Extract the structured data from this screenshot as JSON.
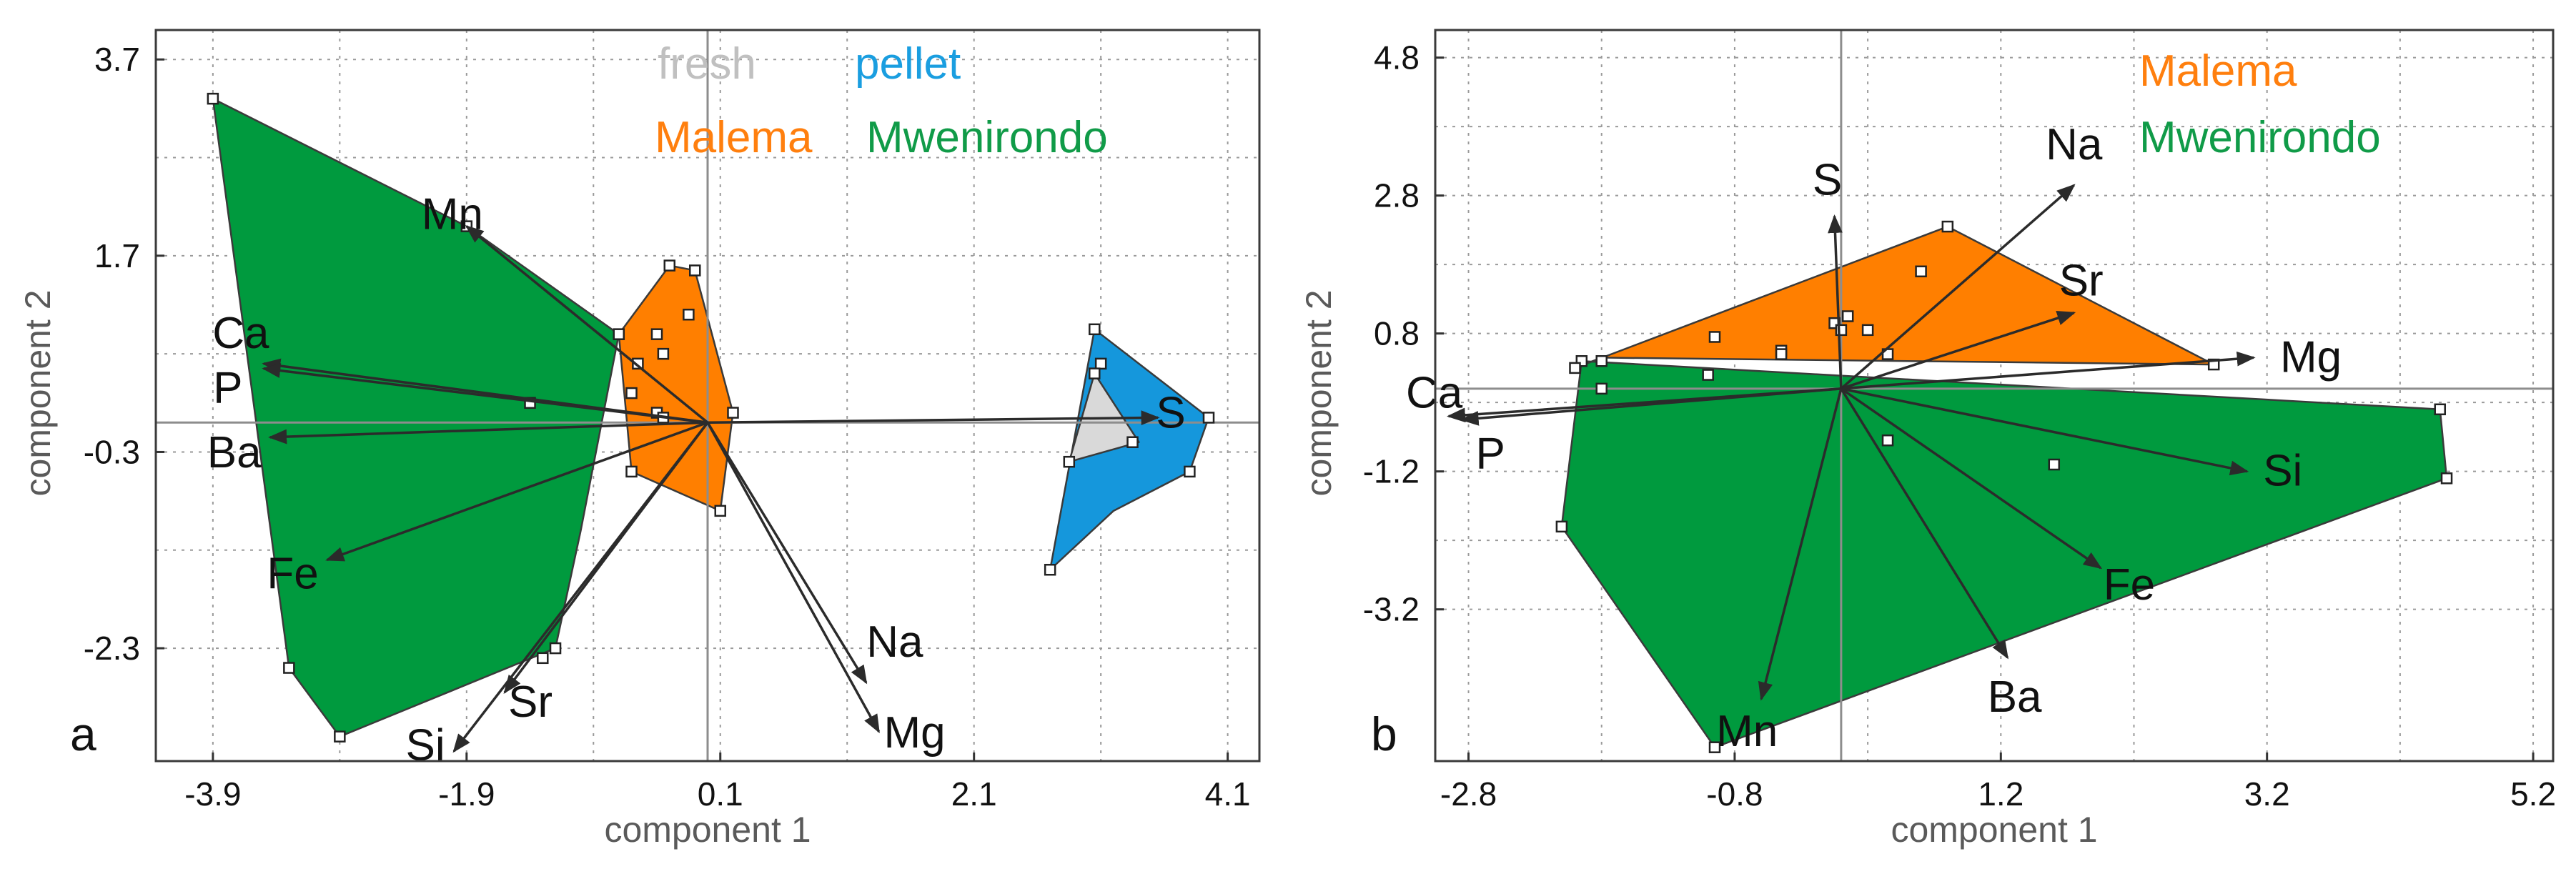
{
  "chart_data": [
    {
      "type": "biplot",
      "panel_label": "a",
      "xlabel": "component 1",
      "ylabel": "component 2",
      "xlim": [
        -4.35,
        4.35
      ],
      "ylim": [
        -3.45,
        4.0
      ],
      "xticks": [
        -3.9,
        -1.9,
        0.1,
        2.1,
        4.1
      ],
      "xtick_labels": [
        "-3.9",
        "-1.9",
        "0.1",
        "2.1",
        "4.1"
      ],
      "yticks": [
        3.7,
        1.7,
        -0.3,
        -2.3
      ],
      "ytick_labels": [
        "3.7",
        "1.7",
        "-0.3",
        "-2.3"
      ],
      "legend": [
        {
          "label": "fresh",
          "color": "#c0c0c0"
        },
        {
          "label": "pellet",
          "color": "#1a9ee0"
        },
        {
          "label": "Malema",
          "color": "#ff7f0e"
        },
        {
          "label": "Mwenirondo",
          "color": "#109b48"
        }
      ],
      "groups": [
        {
          "name": "Mwenirondo",
          "color": "#009a3e",
          "hull": [
            [
              -3.9,
              3.3
            ],
            [
              -1.9,
              2.0
            ],
            [
              -0.7,
              0.9
            ],
            [
              -1.0,
              -1.1
            ],
            [
              -1.2,
              -2.3
            ],
            [
              -2.9,
              -3.2
            ],
            [
              -3.3,
              -2.5
            ]
          ],
          "points": [
            [
              -3.9,
              3.3
            ],
            [
              -1.9,
              2.0
            ],
            [
              -0.7,
              0.9
            ],
            [
              -1.2,
              -2.3
            ],
            [
              -1.3,
              -2.4
            ],
            [
              -2.9,
              -3.2
            ],
            [
              -3.3,
              -2.5
            ],
            [
              -1.4,
              0.2
            ]
          ]
        },
        {
          "name": "Malema",
          "color": "#ff7f00",
          "hull": [
            [
              -0.7,
              0.9
            ],
            [
              -0.3,
              1.6
            ],
            [
              -0.1,
              1.55
            ],
            [
              0.2,
              0.1
            ],
            [
              0.1,
              -0.9
            ],
            [
              -0.6,
              -0.5
            ]
          ],
          "points": [
            [
              -0.7,
              0.9
            ],
            [
              -0.3,
              1.6
            ],
            [
              -0.1,
              1.55
            ],
            [
              -0.15,
              1.1
            ],
            [
              -0.4,
              0.9
            ],
            [
              -0.35,
              0.7
            ],
            [
              -0.55,
              0.6
            ],
            [
              -0.6,
              0.3
            ],
            [
              -0.4,
              0.1
            ],
            [
              -0.35,
              0.05
            ],
            [
              0.2,
              0.1
            ],
            [
              0.1,
              -0.9
            ],
            [
              -0.6,
              -0.5
            ]
          ]
        },
        {
          "name": "pellet",
          "color": "#1597dc",
          "hull": [
            [
              3.05,
              0.95
            ],
            [
              3.95,
              0.05
            ],
            [
              3.8,
              -0.5
            ],
            [
              3.2,
              -0.9
            ],
            [
              2.7,
              -1.5
            ]
          ],
          "points": [
            [
              3.05,
              0.95
            ],
            [
              3.95,
              0.05
            ],
            [
              3.8,
              -0.5
            ],
            [
              2.7,
              -1.5
            ],
            [
              3.1,
              0.6
            ]
          ]
        },
        {
          "name": "fresh",
          "color": "#d9d9d9",
          "hull": [
            [
              3.05,
              0.5
            ],
            [
              3.4,
              -0.2
            ],
            [
              2.85,
              -0.4
            ]
          ],
          "points": [
            [
              2.85,
              -0.4
            ],
            [
              3.05,
              0.5
            ],
            [
              3.35,
              -0.2
            ]
          ]
        }
      ],
      "loadings": [
        {
          "label": "Mn",
          "x": -1.9,
          "y": 2.0,
          "label_offset": [
            -20,
            -16
          ]
        },
        {
          "label": "Ca",
          "x": -3.5,
          "y": 0.6,
          "label_offset": [
            -32,
            -42
          ]
        },
        {
          "label": "P",
          "x": -3.5,
          "y": 0.55,
          "label_offset": [
            -50,
            28
          ]
        },
        {
          "label": "Ba",
          "x": -3.45,
          "y": -0.15,
          "label_offset": [
            -50,
            22
          ]
        },
        {
          "label": "Fe",
          "x": -3.0,
          "y": -1.4,
          "label_offset": [
            -48,
            20
          ]
        },
        {
          "label": "Sr",
          "x": -1.6,
          "y": -2.75,
          "label_offset": [
            36,
            14
          ]
        },
        {
          "label": "Si",
          "x": -2.0,
          "y": -3.35,
          "label_offset": [
            -40,
            -8
          ]
        },
        {
          "label": "Na",
          "x": 1.25,
          "y": -2.65,
          "label_offset": [
            40,
            -56
          ]
        },
        {
          "label": "Mg",
          "x": 1.35,
          "y": -3.15,
          "label_offset": [
            50,
            2
          ]
        },
        {
          "label": "S",
          "x": 3.55,
          "y": 0.05,
          "label_offset": [
            18,
            -6
          ]
        }
      ]
    },
    {
      "type": "biplot",
      "panel_label": "b",
      "xlabel": "component 1",
      "ylabel": "component 2",
      "xlim": [
        -3.05,
        5.35
      ],
      "ylim": [
        -5.4,
        5.2
      ],
      "xticks": [
        -2.8,
        -0.8,
        1.2,
        3.2,
        5.2
      ],
      "xtick_labels": [
        "-2.8",
        "-0.8",
        "1.2",
        "3.2",
        "5.2"
      ],
      "yticks": [
        4.8,
        2.8,
        0.8,
        -1.2,
        -3.2
      ],
      "ytick_labels": [
        "4.8",
        "2.8",
        "0.8",
        "-1.2",
        "-3.2"
      ],
      "legend": [
        {
          "label": "Malema",
          "color": "#ff7f0e"
        },
        {
          "label": "Mwenirondo",
          "color": "#109b48"
        }
      ],
      "groups": [
        {
          "name": "Mwenirondo",
          "color": "#009a3e",
          "hull": [
            [
              -1.95,
              0.4
            ],
            [
              4.5,
              -0.3
            ],
            [
              4.55,
              -1.3
            ],
            [
              -0.95,
              -5.2
            ],
            [
              -2.1,
              -2.0
            ]
          ],
          "points": [
            [
              -1.95,
              0.4
            ],
            [
              -1.8,
              0.0
            ],
            [
              4.5,
              -0.3
            ],
            [
              4.55,
              -1.3
            ],
            [
              -0.95,
              -5.2
            ],
            [
              -2.1,
              -2.0
            ],
            [
              -1.0,
              0.2
            ],
            [
              0.35,
              -0.75
            ],
            [
              1.6,
              -1.1
            ]
          ]
        },
        {
          "name": "Malema",
          "color": "#ff7f00",
          "hull": [
            [
              -2.0,
              0.3
            ],
            [
              0.8,
              2.35
            ],
            [
              2.8,
              0.35
            ],
            [
              -1.8,
              0.45
            ]
          ],
          "points": [
            [
              -2.0,
              0.3
            ],
            [
              -1.8,
              0.4
            ],
            [
              0.8,
              2.35
            ],
            [
              2.8,
              0.35
            ],
            [
              -0.95,
              0.75
            ],
            [
              -0.45,
              0.55
            ],
            [
              -0.45,
              0.5
            ],
            [
              -0.05,
              0.95
            ],
            [
              0.05,
              1.05
            ],
            [
              0.0,
              0.85
            ],
            [
              0.2,
              0.85
            ],
            [
              0.35,
              0.5
            ],
            [
              0.6,
              1.7
            ]
          ]
        }
      ],
      "loadings": [
        {
          "label": "S",
          "x": -0.05,
          "y": 2.5,
          "label_offset": [
            -10,
            -50
          ]
        },
        {
          "label": "Na",
          "x": 1.75,
          "y": 2.95,
          "label_offset": [
            0,
            -56
          ]
        },
        {
          "label": "Sr",
          "x": 1.75,
          "y": 1.1,
          "label_offset": [
            10,
            -44
          ]
        },
        {
          "label": "Mg",
          "x": 3.1,
          "y": 0.45,
          "label_offset": [
            80,
            0
          ]
        },
        {
          "label": "Ca",
          "x": -2.95,
          "y": -0.4,
          "label_offset": [
            -20,
            -32
          ]
        },
        {
          "label": "P",
          "x": -2.85,
          "y": -0.45,
          "label_offset": [
            40,
            48
          ]
        },
        {
          "label": "Si",
          "x": 3.05,
          "y": -1.2,
          "label_offset": [
            50,
            0
          ]
        },
        {
          "label": "Fe",
          "x": 1.95,
          "y": -2.6,
          "label_offset": [
            40,
            24
          ]
        },
        {
          "label": "Ba",
          "x": 1.25,
          "y": -3.9,
          "label_offset": [
            10,
            56
          ]
        },
        {
          "label": "Mn",
          "x": -0.6,
          "y": -4.5,
          "label_offset": [
            -20,
            46
          ]
        }
      ]
    }
  ]
}
